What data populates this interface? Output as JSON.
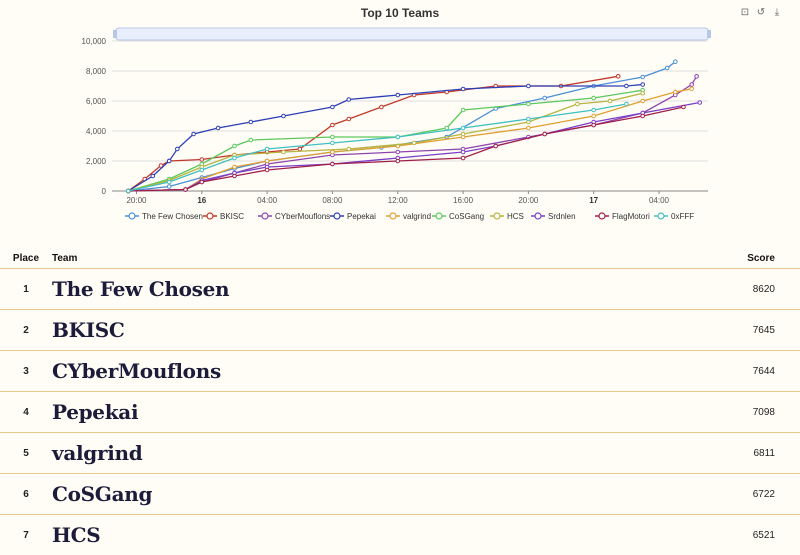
{
  "chart_data": {
    "type": "line",
    "title": "Top 10 Teams",
    "y_ticks": [
      "0",
      "2,000",
      "4,000",
      "6,000",
      "8,000",
      "10,000"
    ],
    "ylim": [
      0,
      10000
    ],
    "x_ticks": [
      "20:00",
      "16",
      "04:00",
      "08:00",
      "12:00",
      "16:00",
      "20:00",
      "17",
      "04:00"
    ],
    "x_tick_positions": [
      0,
      4,
      8,
      12,
      16,
      20,
      24,
      28,
      32
    ],
    "x_range": [
      -1.5,
      35
    ],
    "legend_position": "bottom",
    "series": [
      {
        "name": "The Few Chosen",
        "color": "#4a90d9",
        "points": [
          [
            -0.5,
            0
          ],
          [
            2,
            300
          ],
          [
            4,
            900
          ],
          [
            6,
            1500
          ],
          [
            8,
            2000
          ],
          [
            12,
            2600
          ],
          [
            15,
            2900
          ],
          [
            19,
            3600
          ],
          [
            22,
            5500
          ],
          [
            25,
            6200
          ],
          [
            28,
            7000
          ],
          [
            31,
            7600
          ],
          [
            32.5,
            8200
          ],
          [
            33,
            8620
          ]
        ]
      },
      {
        "name": "BKISC",
        "color": "#c0392b",
        "points": [
          [
            -0.5,
            0
          ],
          [
            0.5,
            800
          ],
          [
            1.5,
            1700
          ],
          [
            2,
            2000
          ],
          [
            4,
            2100
          ],
          [
            6,
            2400
          ],
          [
            8,
            2600
          ],
          [
            10,
            2800
          ],
          [
            12,
            4400
          ],
          [
            13,
            4800
          ],
          [
            15,
            5600
          ],
          [
            17,
            6400
          ],
          [
            19,
            6600
          ],
          [
            22,
            7000
          ],
          [
            26,
            7000
          ],
          [
            29.5,
            7645
          ]
        ]
      },
      {
        "name": "CYberMouflons",
        "color": "#8e44ad",
        "points": [
          [
            -0.5,
            0
          ],
          [
            3,
            100
          ],
          [
            4,
            600
          ],
          [
            6,
            1200
          ],
          [
            8,
            1800
          ],
          [
            12,
            2400
          ],
          [
            16,
            2600
          ],
          [
            20,
            2800
          ],
          [
            24,
            3600
          ],
          [
            28,
            4400
          ],
          [
            31,
            5200
          ],
          [
            33,
            6400
          ],
          [
            34,
            7100
          ],
          [
            34.3,
            7644
          ]
        ]
      },
      {
        "name": "Pepekai",
        "color": "#2c3fb8",
        "points": [
          [
            -0.5,
            0
          ],
          [
            1,
            1000
          ],
          [
            2,
            2000
          ],
          [
            2.5,
            2800
          ],
          [
            3.5,
            3800
          ],
          [
            5,
            4200
          ],
          [
            7,
            4600
          ],
          [
            9,
            5000
          ],
          [
            12,
            5600
          ],
          [
            13,
            6100
          ],
          [
            16,
            6400
          ],
          [
            20,
            6800
          ],
          [
            24,
            7000
          ],
          [
            30,
            7000
          ],
          [
            31,
            7098
          ]
        ]
      },
      {
        "name": "valgrind",
        "color": "#e0a030",
        "points": [
          [
            -0.5,
            0
          ],
          [
            3,
            100
          ],
          [
            4,
            800
          ],
          [
            6,
            1600
          ],
          [
            8,
            2000
          ],
          [
            12,
            2600
          ],
          [
            16,
            3000
          ],
          [
            20,
            3600
          ],
          [
            24,
            4200
          ],
          [
            28,
            5000
          ],
          [
            31,
            6000
          ],
          [
            33,
            6600
          ],
          [
            34,
            6811
          ]
        ]
      },
      {
        "name": "CoSGang",
        "color": "#5cc85c",
        "points": [
          [
            -0.5,
            0
          ],
          [
            2,
            800
          ],
          [
            4,
            1800
          ],
          [
            6,
            3000
          ],
          [
            7,
            3400
          ],
          [
            12,
            3600
          ],
          [
            16,
            3600
          ],
          [
            19,
            4200
          ],
          [
            20,
            5400
          ],
          [
            24,
            5800
          ],
          [
            28,
            6200
          ],
          [
            31,
            6722
          ]
        ]
      },
      {
        "name": "HCS",
        "color": "#b5b540",
        "points": [
          [
            -0.5,
            0
          ],
          [
            2,
            700
          ],
          [
            4,
            1600
          ],
          [
            6,
            2400
          ],
          [
            9,
            2600
          ],
          [
            13,
            2800
          ],
          [
            17,
            3200
          ],
          [
            20,
            3800
          ],
          [
            24,
            4600
          ],
          [
            27,
            5800
          ],
          [
            29,
            6000
          ],
          [
            31,
            6521
          ]
        ]
      },
      {
        "name": "Srdnlen",
        "color": "#7a3ec8",
        "points": [
          [
            -0.5,
            0
          ],
          [
            3,
            100
          ],
          [
            4,
            700
          ],
          [
            6,
            1200
          ],
          [
            8,
            1600
          ],
          [
            12,
            1800
          ],
          [
            16,
            2200
          ],
          [
            20,
            2600
          ],
          [
            22,
            3000
          ],
          [
            25,
            3800
          ],
          [
            28,
            4600
          ],
          [
            31,
            5200
          ],
          [
            34.5,
            5900
          ]
        ]
      },
      {
        "name": "FlagMotori",
        "color": "#a01f4a",
        "points": [
          [
            -0.5,
            0
          ],
          [
            3,
            100
          ],
          [
            4,
            600
          ],
          [
            6,
            1000
          ],
          [
            8,
            1400
          ],
          [
            12,
            1800
          ],
          [
            16,
            2000
          ],
          [
            20,
            2200
          ],
          [
            22,
            3000
          ],
          [
            25,
            3800
          ],
          [
            28,
            4400
          ],
          [
            31,
            5000
          ],
          [
            33.5,
            5600
          ]
        ]
      },
      {
        "name": "0xFFF",
        "color": "#40c0c0",
        "points": [
          [
            -0.5,
            0
          ],
          [
            2,
            600
          ],
          [
            4,
            1400
          ],
          [
            6,
            2200
          ],
          [
            8,
            2800
          ],
          [
            12,
            3200
          ],
          [
            16,
            3600
          ],
          [
            20,
            4200
          ],
          [
            24,
            4800
          ],
          [
            28,
            5400
          ],
          [
            30,
            5800
          ]
        ]
      }
    ]
  },
  "table": {
    "headers": {
      "place": "Place",
      "team": "Team",
      "score": "Score"
    },
    "rows": [
      {
        "place": "1",
        "team": "The Few Chosen",
        "score": "8620"
      },
      {
        "place": "2",
        "team": "BKISC",
        "score": "7645"
      },
      {
        "place": "3",
        "team": "CYberMouflons",
        "score": "7644"
      },
      {
        "place": "4",
        "team": "Pepekai",
        "score": "7098"
      },
      {
        "place": "5",
        "team": "valgrind",
        "score": "6811"
      },
      {
        "place": "6",
        "team": "CoSGang",
        "score": "6722"
      },
      {
        "place": "7",
        "team": "HCS",
        "score": "6521"
      }
    ]
  },
  "toolbar": {
    "icons": [
      "zoom-icon",
      "restore-icon",
      "download-icon"
    ]
  }
}
